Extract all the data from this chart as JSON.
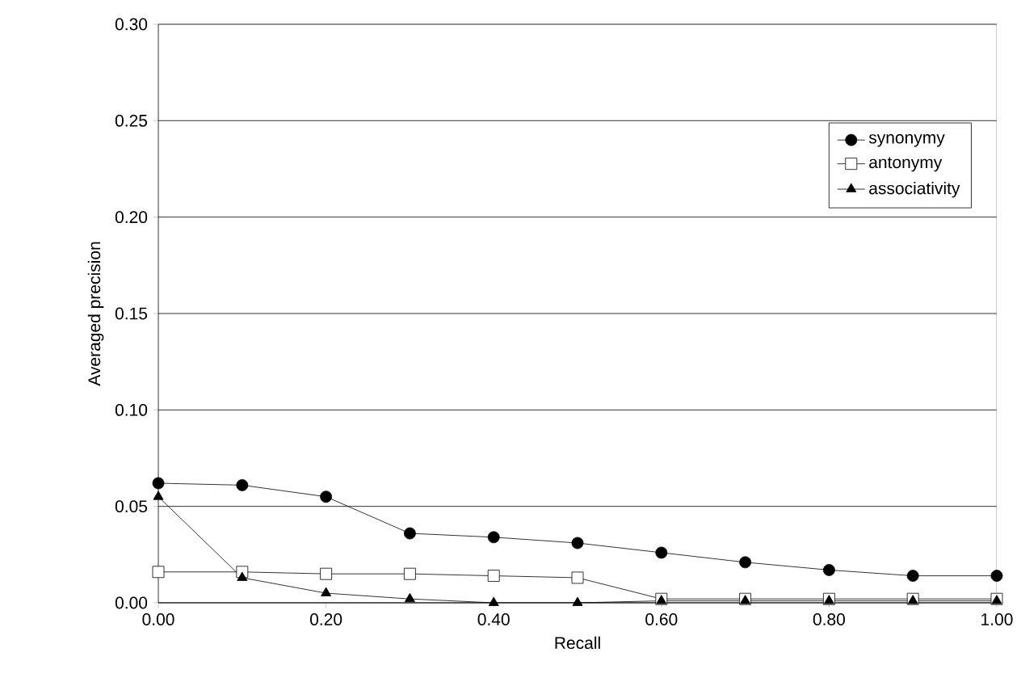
{
  "chart_data": {
    "type": "line",
    "xlabel": "Recall",
    "ylabel": "Averaged precision",
    "x": [
      0,
      0.1,
      0.2,
      0.3,
      0.4,
      0.5,
      0.6,
      0.7,
      0.8,
      0.9,
      1.0
    ],
    "xlim": [
      0,
      1
    ],
    "ylim": [
      0,
      0.3
    ],
    "xticks": [
      {
        "value": 0,
        "label": "0.00"
      },
      {
        "value": 0.2,
        "label": "0.20"
      },
      {
        "value": 0.4,
        "label": "0.40"
      },
      {
        "value": 0.6,
        "label": "0.60"
      },
      {
        "value": 0.8,
        "label": "0.80"
      },
      {
        "value": 1.0,
        "label": "1.00"
      }
    ],
    "yticks": [
      {
        "value": 0,
        "label": "0.00"
      },
      {
        "value": 0.05,
        "label": "0.05"
      },
      {
        "value": 0.1,
        "label": "0.10"
      },
      {
        "value": 0.15,
        "label": "0.15"
      },
      {
        "value": 0.2,
        "label": "0.20"
      },
      {
        "value": 0.25,
        "label": "0.25"
      },
      {
        "value": 0.3,
        "label": "0.30"
      }
    ],
    "grid": "y",
    "legend": "top right",
    "line_style": "solid",
    "series": [
      {
        "name": "synonymy",
        "color": "#000000",
        "marker": "circle",
        "values": [
          0.062,
          0.061,
          0.055,
          0.036,
          0.034,
          0.031,
          0.026,
          0.021,
          0.017,
          0.014,
          0.014
        ]
      },
      {
        "name": "antonymy",
        "color": "#000000",
        "marker": "square",
        "values": [
          0.016,
          0.016,
          0.015,
          0.015,
          0.014,
          0.013,
          0.002,
          0.002,
          0.002,
          0.002,
          0.002
        ]
      },
      {
        "name": "associativity",
        "color": "#000000",
        "marker": "triangle",
        "values": [
          0.055,
          0.013,
          0.005,
          0.002,
          0,
          0,
          0.001,
          0.001,
          0.001,
          0.001,
          0.001
        ]
      }
    ]
  }
}
